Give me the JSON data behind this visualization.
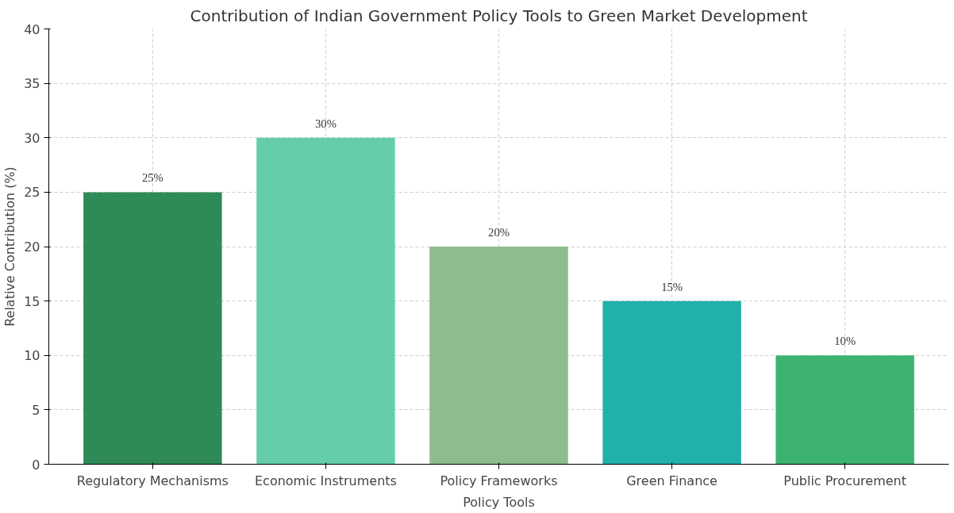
{
  "chart_data": {
    "type": "bar",
    "title": "Contribution of Indian Government Policy Tools to Green Market Development",
    "xlabel": "Policy Tools",
    "ylabel": "Relative Contribution (%)",
    "categories": [
      "Regulatory Mechanisms",
      "Economic Instruments",
      "Policy Frameworks",
      "Green Finance",
      "Public Procurement"
    ],
    "values": [
      25,
      30,
      20,
      15,
      10
    ],
    "colors": [
      "#2e8b57",
      "#66cdaa",
      "#8fbc8f",
      "#20b2aa",
      "#3cb371"
    ],
    "value_labels": [
      "25%",
      "30%",
      "20%",
      "15%",
      "10%"
    ],
    "ylim": [
      0,
      40
    ],
    "yticks": [
      0,
      5,
      10,
      15,
      20,
      25,
      30,
      35,
      40
    ],
    "grid": true
  }
}
